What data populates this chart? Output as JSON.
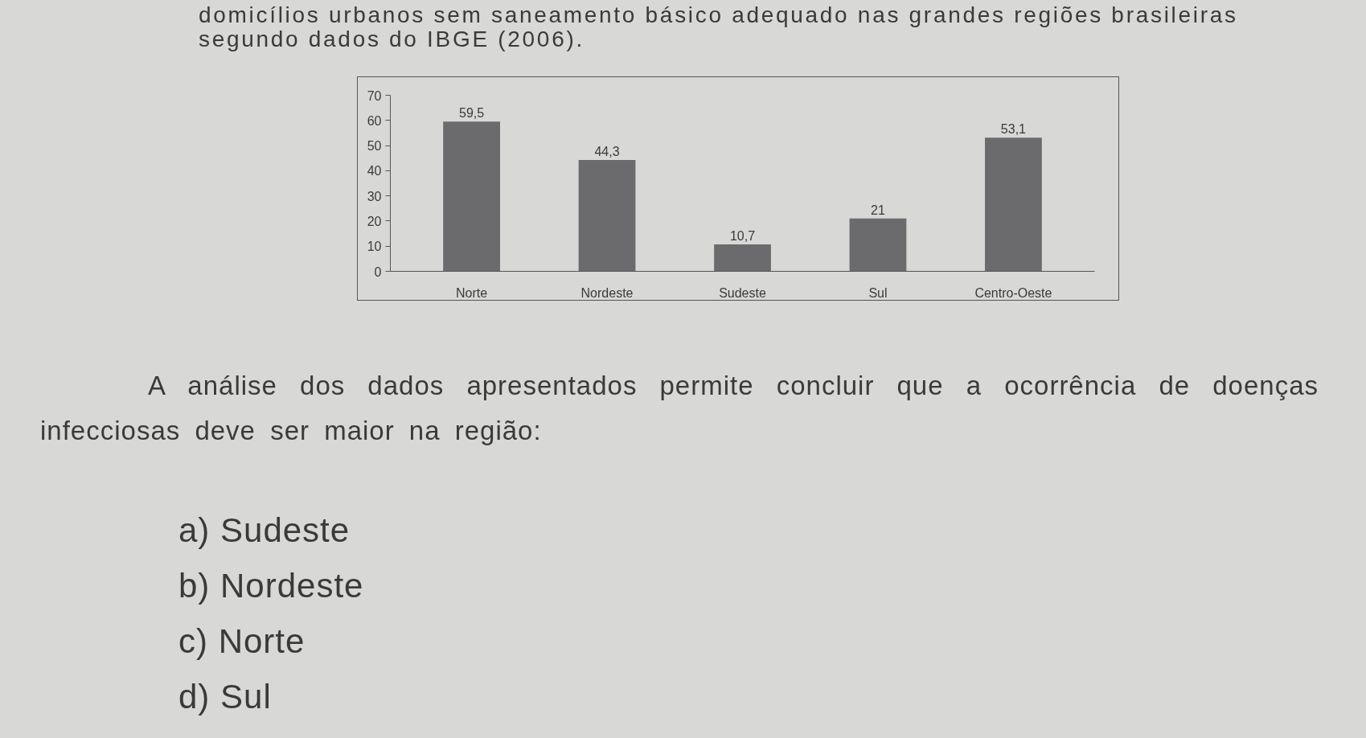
{
  "chart_data": {
    "type": "bar",
    "title": "domicílios urbanos sem saneamento básico adequado nas grandes regiões brasileiras segundo dados do IBGE (2006).",
    "categories": [
      "Norte",
      "Nordeste",
      "Sudeste",
      "Sul",
      "Centro-Oeste"
    ],
    "values": [
      59.5,
      44.3,
      10.7,
      21,
      53.1
    ],
    "value_labels": [
      "59,5",
      "44,3",
      "10,7",
      "21",
      "53,1"
    ],
    "color": "#6b6b6d",
    "ylim": [
      0,
      70
    ],
    "yticks": [
      0,
      10,
      20,
      30,
      40,
      50,
      60,
      70
    ],
    "grid": false,
    "annotations": [
      "A análise dos dados apresentados permite concluir que a ocorrência de doenças infecciosas deve ser maior na região:",
      "a) Sudeste",
      "b) Nordeste",
      "c) Norte",
      "d) Sul"
    ]
  }
}
